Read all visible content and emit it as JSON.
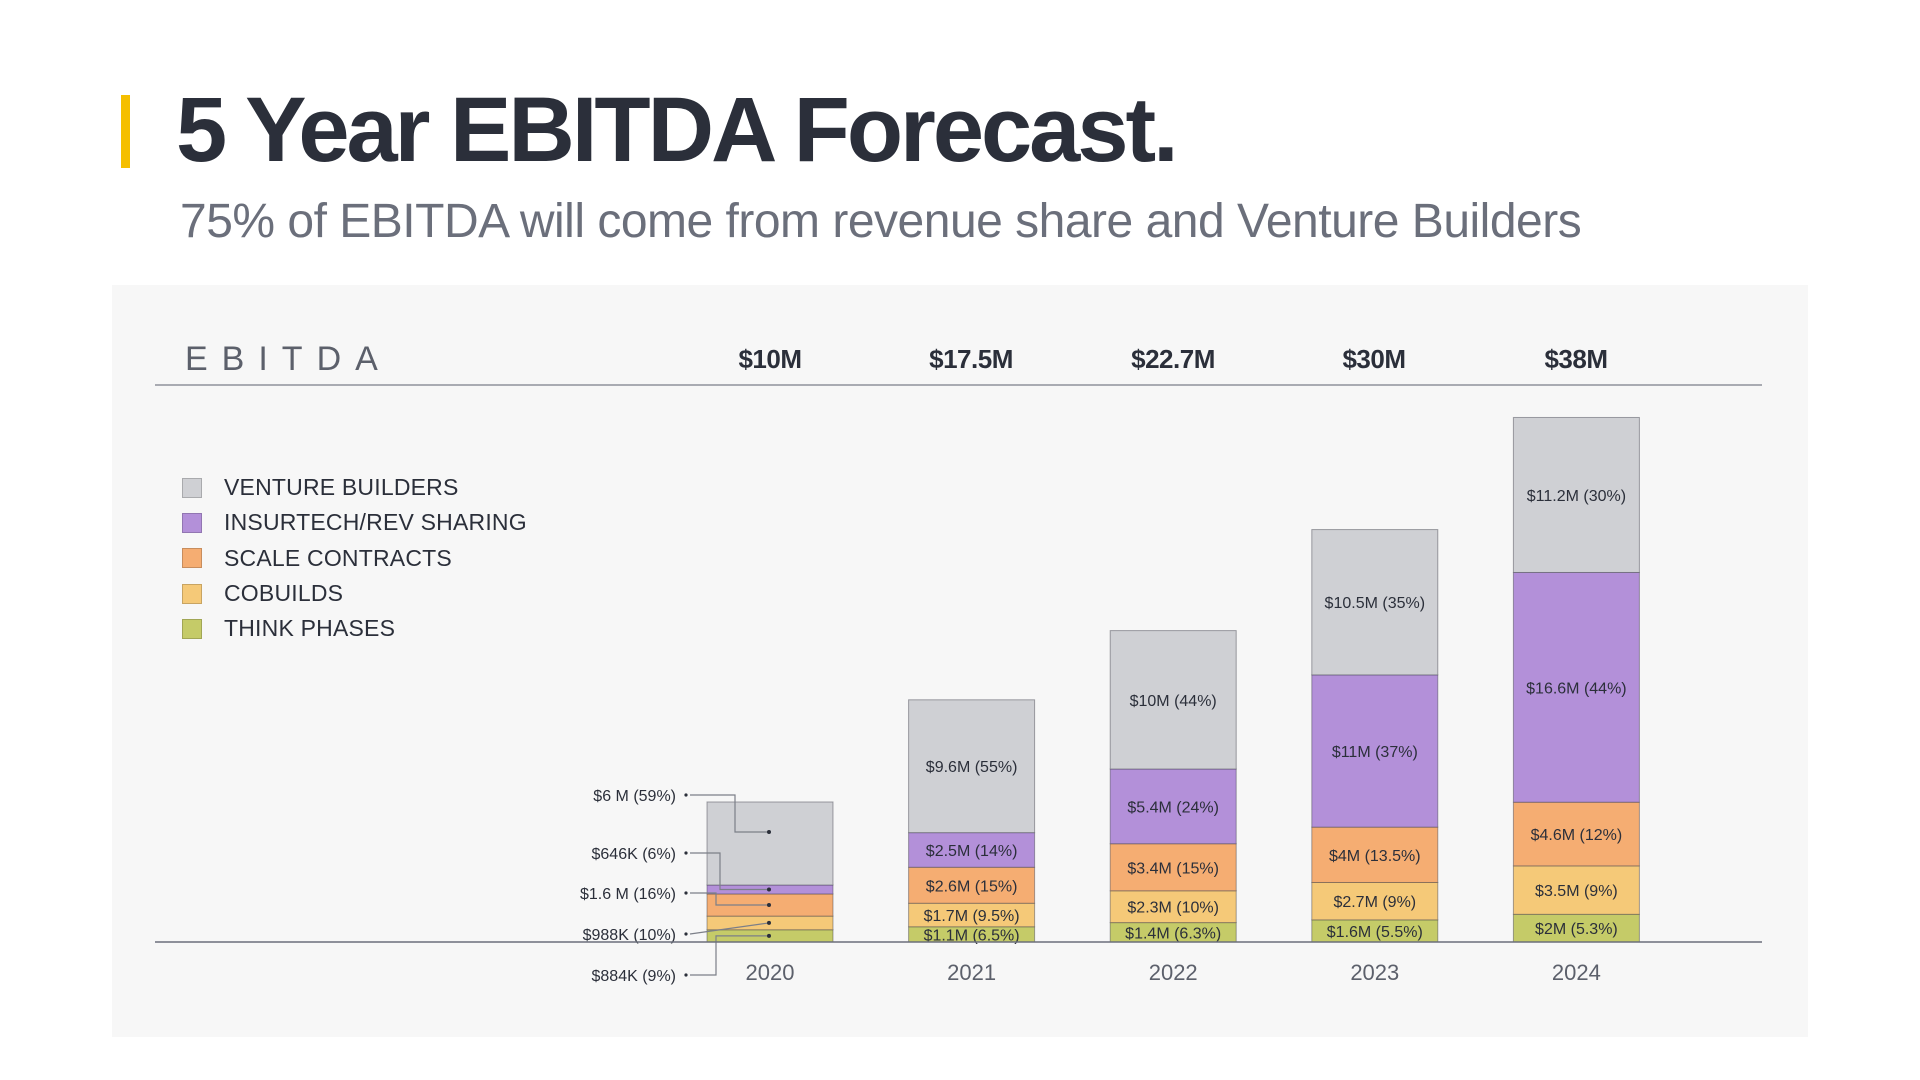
{
  "header": {
    "title": "5 Year EBITDA Forecast.",
    "subtitle": "75% of EBITDA will come from revenue share and Venture Builders",
    "accent_color": "#f5bf00"
  },
  "chart_data": {
    "type": "bar",
    "stacked": true,
    "title": "EBITDA",
    "xlabel": "",
    "ylabel": "",
    "categories": [
      "2020",
      "2021",
      "2022",
      "2023",
      "2024"
    ],
    "totals": [
      "$10M",
      "$17.5M",
      "$22.7M",
      "$30M",
      "$38M"
    ],
    "total_values": [
      10,
      17.5,
      22.7,
      30,
      38
    ],
    "units": "$M",
    "legend_position": "top-left",
    "grid": false,
    "series": [
      {
        "name": "THINK PHASES",
        "color": "#c5cb68",
        "values": [
          0.884,
          1.1,
          1.4,
          1.6,
          2.0
        ],
        "labels": [
          "$884K (9%)",
          "$1.1M (6.5%)",
          "$1.4M (6.3%)",
          "$1.6M (5.5%)",
          "$2M (5.3%)"
        ]
      },
      {
        "name": "COBUILDS",
        "color": "#f5c978",
        "values": [
          0.988,
          1.7,
          2.3,
          2.7,
          3.5
        ],
        "labels": [
          "$988K (10%)",
          "$1.7M (9.5%)",
          "$2.3M (10%)",
          "$2.7M (9%)",
          "$3.5M (9%)"
        ]
      },
      {
        "name": "SCALE CONTRACTS",
        "color": "#f5ad72",
        "values": [
          1.6,
          2.6,
          3.4,
          4.0,
          4.6
        ],
        "labels": [
          "$1.6 M (16%)",
          "$2.6M (15%)",
          "$3.4M (15%)",
          "$4M (13.5%)",
          "$4.6M (12%)"
        ]
      },
      {
        "name": "INSURTECH/REV SHARING",
        "color": "#b390d9",
        "values": [
          0.646,
          2.5,
          5.4,
          11.0,
          16.6
        ],
        "labels": [
          "$646K (6%)",
          "$2.5M (14%)",
          "$5.4M (24%)",
          "$11M (37%)",
          "$16.6M (44%)"
        ]
      },
      {
        "name": "VENTURE BUILDERS",
        "color": "#cfd0d4",
        "values": [
          6.0,
          9.6,
          10.0,
          10.5,
          11.2
        ],
        "labels": [
          "$6 M (59%)",
          "$9.6M (55%)",
          "$10M (44%)",
          "$10.5M (35%)",
          "$11.2M (30%)"
        ]
      }
    ],
    "legend": [
      {
        "name": "VENTURE BUILDERS",
        "color": "#cfd0d4"
      },
      {
        "name": "INSURTECH/REV SHARING",
        "color": "#b390d9"
      },
      {
        "name": "SCALE CONTRACTS",
        "color": "#f5ad72"
      },
      {
        "name": "COBUILDS",
        "color": "#f5c978"
      },
      {
        "name": "THINK PHASES",
        "color": "#c5cb68"
      }
    ],
    "external_annotations_category": "2020"
  }
}
